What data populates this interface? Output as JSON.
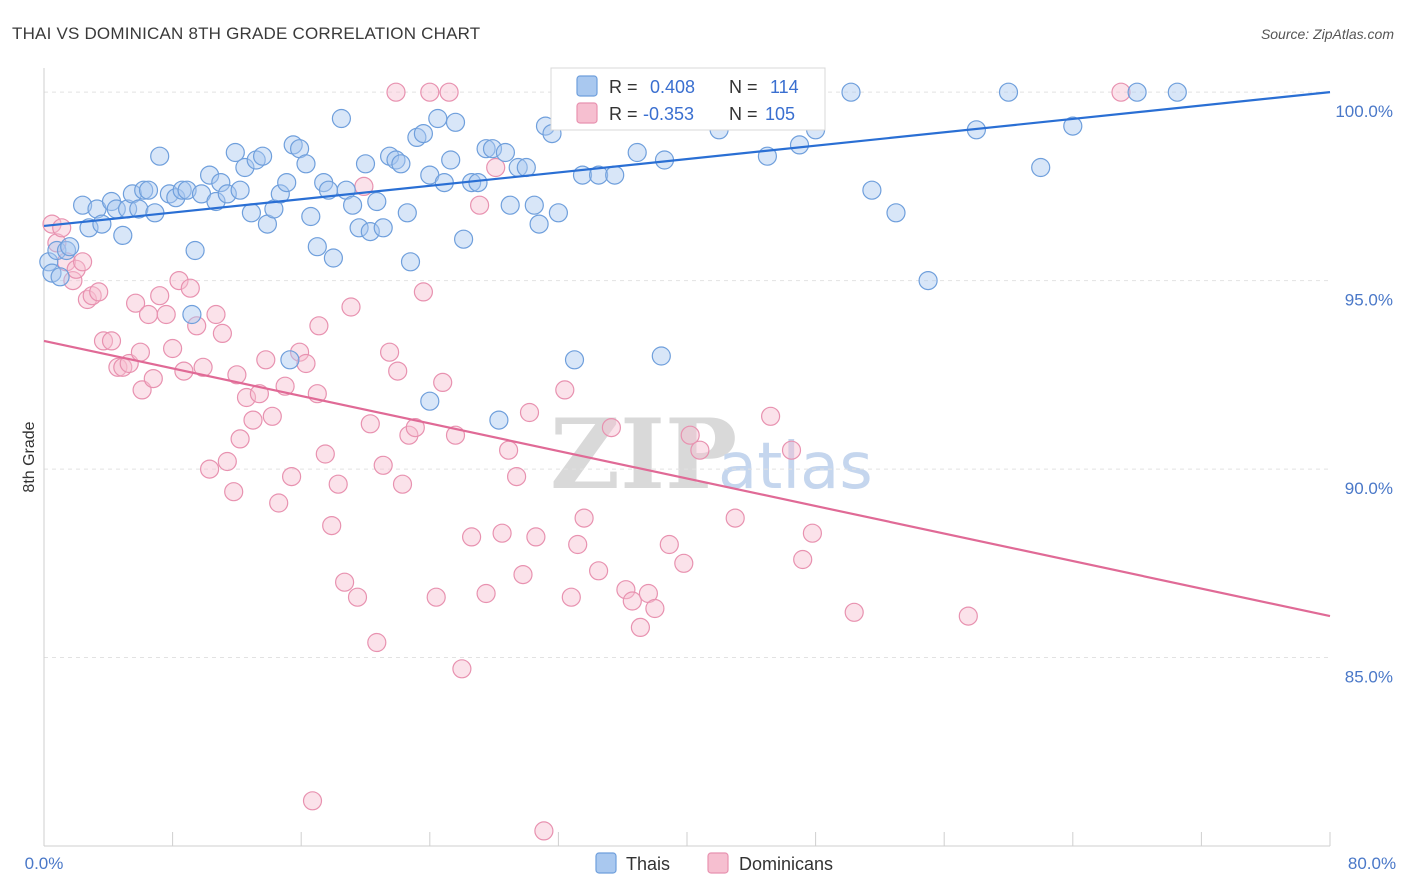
{
  "header": {
    "title": "THAI VS DOMINICAN 8TH GRADE CORRELATION CHART",
    "source": "Source: ZipAtlas.com"
  },
  "watermark": {
    "zip": "ZIP",
    "atlas": "atlas"
  },
  "colors": {
    "thais_fill": "#a9c8ef",
    "thais_stroke": "#6f9fdc",
    "thais_line": "#2a6fd4",
    "dominicans_fill": "#f6bfd0",
    "dominicans_stroke": "#e892b0",
    "dominicans_line": "#e06a96",
    "tick_text": "#4a78c8",
    "grid": "#e2e2e2"
  },
  "stats_legend": {
    "thais": {
      "r_label": "R =",
      "r_value": "0.408",
      "n_label": "N =",
      "n_value": "114"
    },
    "dominicans": {
      "r_label": "R =",
      "r_value": "-0.353",
      "n_label": "N =",
      "n_value": "105"
    }
  },
  "bottom_legend": {
    "thais": "Thais",
    "dominicans": "Dominicans"
  },
  "chart_data": {
    "type": "scatter",
    "title": "THAI VS DOMINICAN 8TH GRADE CORRELATION CHART",
    "xlabel": "",
    "ylabel": "8th Grade",
    "xlim": [
      0,
      80
    ],
    "ylim": [
      80.0,
      100.8
    ],
    "x_tick_labels": [
      "0.0%",
      "80.0%"
    ],
    "y_ticks": [
      85.0,
      90.0,
      95.0,
      100.0
    ],
    "y_tick_labels": [
      "85.0%",
      "90.0%",
      "95.0%",
      "100.0%"
    ],
    "grid": true,
    "legend": "top-center",
    "series": [
      {
        "name": "Thais",
        "r": 0.408,
        "n": 114,
        "trend": {
          "x": [
            0,
            80
          ],
          "y": [
            96.45,
            100.0
          ]
        },
        "points": [
          [
            0.3,
            95.5
          ],
          [
            0.5,
            95.2
          ],
          [
            0.8,
            95.8
          ],
          [
            1.0,
            95.1
          ],
          [
            1.4,
            95.8
          ],
          [
            1.6,
            95.9
          ],
          [
            2.4,
            97.0
          ],
          [
            2.8,
            96.4
          ],
          [
            3.3,
            96.9
          ],
          [
            3.6,
            96.5
          ],
          [
            4.2,
            97.1
          ],
          [
            4.5,
            96.9
          ],
          [
            4.9,
            96.2
          ],
          [
            5.2,
            96.9
          ],
          [
            5.5,
            97.3
          ],
          [
            5.9,
            96.9
          ],
          [
            6.2,
            97.4
          ],
          [
            6.5,
            97.4
          ],
          [
            6.9,
            96.8
          ],
          [
            7.2,
            98.3
          ],
          [
            7.8,
            97.3
          ],
          [
            8.2,
            97.2
          ],
          [
            8.6,
            97.4
          ],
          [
            8.9,
            97.4
          ],
          [
            9.4,
            95.8
          ],
          [
            9.8,
            97.3
          ],
          [
            10.3,
            97.8
          ],
          [
            10.7,
            97.1
          ],
          [
            11.0,
            97.6
          ],
          [
            11.4,
            97.3
          ],
          [
            11.9,
            98.4
          ],
          [
            12.2,
            97.4
          ],
          [
            12.5,
            98.0
          ],
          [
            12.9,
            96.8
          ],
          [
            13.2,
            98.2
          ],
          [
            13.6,
            98.3
          ],
          [
            13.9,
            96.5
          ],
          [
            14.3,
            96.9
          ],
          [
            14.7,
            97.3
          ],
          [
            15.1,
            97.6
          ],
          [
            15.5,
            98.6
          ],
          [
            15.9,
            98.5
          ],
          [
            16.3,
            98.1
          ],
          [
            16.6,
            96.7
          ],
          [
            17.0,
            95.9
          ],
          [
            17.4,
            97.6
          ],
          [
            17.7,
            97.4
          ],
          [
            18.0,
            95.6
          ],
          [
            18.5,
            99.3
          ],
          [
            18.8,
            97.4
          ],
          [
            19.2,
            97.0
          ],
          [
            19.6,
            96.4
          ],
          [
            20.0,
            98.1
          ],
          [
            20.3,
            96.3
          ],
          [
            20.7,
            97.1
          ],
          [
            21.1,
            96.4
          ],
          [
            21.5,
            98.3
          ],
          [
            21.9,
            98.2
          ],
          [
            22.2,
            98.1
          ],
          [
            22.6,
            96.8
          ],
          [
            22.8,
            95.5
          ],
          [
            23.2,
            98.8
          ],
          [
            23.6,
            98.9
          ],
          [
            24.0,
            97.8
          ],
          [
            24.5,
            99.3
          ],
          [
            24.9,
            97.6
          ],
          [
            25.3,
            98.2
          ],
          [
            25.6,
            99.2
          ],
          [
            26.1,
            96.1
          ],
          [
            26.6,
            97.6
          ],
          [
            27.0,
            97.6
          ],
          [
            27.5,
            98.5
          ],
          [
            27.9,
            98.5
          ],
          [
            28.3,
            91.3
          ],
          [
            28.7,
            98.4
          ],
          [
            29.0,
            97.0
          ],
          [
            29.5,
            98.0
          ],
          [
            30.0,
            98.0
          ],
          [
            30.5,
            97.0
          ],
          [
            30.8,
            96.5
          ],
          [
            31.2,
            99.1
          ],
          [
            31.6,
            98.9
          ],
          [
            32.0,
            96.8
          ],
          [
            32.4,
            100.0
          ],
          [
            33.0,
            92.9
          ],
          [
            33.5,
            97.8
          ],
          [
            34.0,
            100.0
          ],
          [
            34.5,
            97.8
          ],
          [
            35.0,
            99.5
          ],
          [
            35.5,
            97.8
          ],
          [
            36.3,
            100.0
          ],
          [
            36.9,
            98.4
          ],
          [
            37.8,
            100.0
          ],
          [
            38.6,
            98.2
          ],
          [
            39.5,
            100.0
          ],
          [
            40.4,
            99.5
          ],
          [
            41.2,
            100.0
          ],
          [
            42.0,
            99.0
          ],
          [
            43.0,
            100.0
          ],
          [
            45.0,
            98.3
          ],
          [
            47.0,
            98.6
          ],
          [
            48.0,
            99.0
          ],
          [
            50.2,
            100.0
          ],
          [
            51.5,
            97.4
          ],
          [
            53.0,
            96.8
          ],
          [
            55.0,
            95.0
          ],
          [
            58.0,
            99.0
          ],
          [
            60.0,
            100.0
          ],
          [
            62.0,
            98.0
          ],
          [
            64.0,
            99.1
          ],
          [
            68.0,
            100.0
          ],
          [
            70.5,
            100.0
          ],
          [
            9.2,
            94.1
          ],
          [
            15.3,
            92.9
          ],
          [
            24.0,
            91.8
          ],
          [
            38.4,
            93.0
          ]
        ]
      },
      {
        "name": "Dominicans",
        "r": -0.353,
        "n": 105,
        "trend": {
          "x": [
            0,
            80
          ],
          "y": [
            93.4,
            86.1
          ]
        },
        "points": [
          [
            0.5,
            96.5
          ],
          [
            0.8,
            96.0
          ],
          [
            1.1,
            96.4
          ],
          [
            1.4,
            95.5
          ],
          [
            1.8,
            95.0
          ],
          [
            2.0,
            95.3
          ],
          [
            2.4,
            95.5
          ],
          [
            2.7,
            94.5
          ],
          [
            3.0,
            94.6
          ],
          [
            3.4,
            94.7
          ],
          [
            3.7,
            93.4
          ],
          [
            4.2,
            93.4
          ],
          [
            4.6,
            92.7
          ],
          [
            4.9,
            92.7
          ],
          [
            5.3,
            92.8
          ],
          [
            5.7,
            94.4
          ],
          [
            6.1,
            92.1
          ],
          [
            6.5,
            94.1
          ],
          [
            6.8,
            92.4
          ],
          [
            7.2,
            94.6
          ],
          [
            7.6,
            94.1
          ],
          [
            8.0,
            93.2
          ],
          [
            8.4,
            95.0
          ],
          [
            8.7,
            92.6
          ],
          [
            9.1,
            94.8
          ],
          [
            9.5,
            93.8
          ],
          [
            9.9,
            92.7
          ],
          [
            10.3,
            90.0
          ],
          [
            10.7,
            94.1
          ],
          [
            11.1,
            93.6
          ],
          [
            11.4,
            90.2
          ],
          [
            11.8,
            89.4
          ],
          [
            12.2,
            90.8
          ],
          [
            12.6,
            91.9
          ],
          [
            13.0,
            91.3
          ],
          [
            13.4,
            92.0
          ],
          [
            13.8,
            92.9
          ],
          [
            14.2,
            91.4
          ],
          [
            14.6,
            89.1
          ],
          [
            15.0,
            92.2
          ],
          [
            15.4,
            89.8
          ],
          [
            15.9,
            93.1
          ],
          [
            16.3,
            92.8
          ],
          [
            16.7,
            81.2
          ],
          [
            17.1,
            93.8
          ],
          [
            17.5,
            90.4
          ],
          [
            17.9,
            88.5
          ],
          [
            18.3,
            89.6
          ],
          [
            18.7,
            87.0
          ],
          [
            19.1,
            94.3
          ],
          [
            19.5,
            86.6
          ],
          [
            19.9,
            97.5
          ],
          [
            20.3,
            91.2
          ],
          [
            20.7,
            85.4
          ],
          [
            21.1,
            90.1
          ],
          [
            21.5,
            93.1
          ],
          [
            21.9,
            100.0
          ],
          [
            22.3,
            89.6
          ],
          [
            22.7,
            90.9
          ],
          [
            23.1,
            91.1
          ],
          [
            23.6,
            94.7
          ],
          [
            24.0,
            100.0
          ],
          [
            24.4,
            86.6
          ],
          [
            24.8,
            92.3
          ],
          [
            25.2,
            100.0
          ],
          [
            25.6,
            90.9
          ],
          [
            26.0,
            84.7
          ],
          [
            26.6,
            88.2
          ],
          [
            27.1,
            97.0
          ],
          [
            27.5,
            86.7
          ],
          [
            28.1,
            98.0
          ],
          [
            28.5,
            88.3
          ],
          [
            28.9,
            90.5
          ],
          [
            29.4,
            89.8
          ],
          [
            29.8,
            87.2
          ],
          [
            30.2,
            91.5
          ],
          [
            30.6,
            88.2
          ],
          [
            31.1,
            80.4
          ],
          [
            32.4,
            92.1
          ],
          [
            32.8,
            86.6
          ],
          [
            33.2,
            88.0
          ],
          [
            33.6,
            88.7
          ],
          [
            34.5,
            87.3
          ],
          [
            35.3,
            91.1
          ],
          [
            36.2,
            86.8
          ],
          [
            36.6,
            86.5
          ],
          [
            37.1,
            85.8
          ],
          [
            37.6,
            86.7
          ],
          [
            38.0,
            86.3
          ],
          [
            38.9,
            88.0
          ],
          [
            39.8,
            87.5
          ],
          [
            40.2,
            90.9
          ],
          [
            40.8,
            90.5
          ],
          [
            43.0,
            88.7
          ],
          [
            45.2,
            91.4
          ],
          [
            46.5,
            90.5
          ],
          [
            47.2,
            87.6
          ],
          [
            47.8,
            88.3
          ],
          [
            50.4,
            86.2
          ],
          [
            57.5,
            86.1
          ],
          [
            67.0,
            100.0
          ],
          [
            6.0,
            93.1
          ],
          [
            12.0,
            92.5
          ],
          [
            17.0,
            92.0
          ],
          [
            22.0,
            92.6
          ]
        ]
      }
    ]
  }
}
